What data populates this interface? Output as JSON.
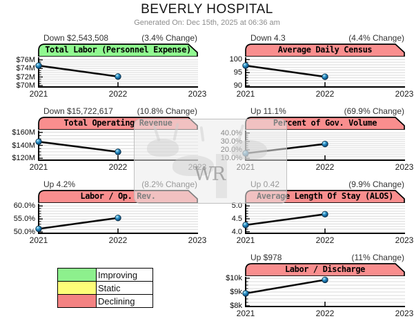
{
  "header": {
    "title": "BEVERLY HOSPITAL",
    "subtitle": "Generated On: Dec 15th, 2025 at 06:36 am"
  },
  "watermark": {
    "text": "WR"
  },
  "legend": {
    "items": [
      {
        "label": "Improving",
        "color": "#8df08d"
      },
      {
        "label": "Static",
        "color": "#fdfd78"
      },
      {
        "label": "Declining",
        "color": "#f38282"
      }
    ]
  },
  "colors": {
    "band_improving": "#90f890",
    "band_declining": "#f98e8e",
    "grid": "#d9d9d9",
    "axis": "#000000",
    "line": "#0a0a0a",
    "marker_dark": "#0b4c7e",
    "marker_mid": "#2b93c9",
    "marker_light": "#bfeefc"
  },
  "chart_data": [
    {
      "type": "line",
      "title": "Total Labor (Personnel Expense)",
      "status": "improving",
      "annotation_left": "Down $2,543,508",
      "annotation_right": "(3.4% Change)",
      "x": [
        2021,
        2022
      ],
      "values": [
        74.65,
        72.1
      ],
      "x_domain": [
        2021,
        2023
      ],
      "x_ticks": [
        "2021",
        "2022",
        "2023"
      ],
      "y_ticks": [
        {
          "label": "$76M",
          "value": 76
        },
        {
          "label": "$74M",
          "value": 74
        },
        {
          "label": "$72M",
          "value": 72
        },
        {
          "label": "$70M",
          "value": 70
        }
      ],
      "value_range": [
        69.5,
        76.6
      ],
      "minor_step": 0.5,
      "grid": true,
      "legend_position": "none"
    },
    {
      "type": "line",
      "title": "Average Daily Census",
      "status": "declining",
      "annotation_left": "Down 4.3",
      "annotation_right": "(4.4% Change)",
      "x": [
        2021,
        2022
      ],
      "values": [
        97.7,
        93.4
      ],
      "x_domain": [
        2021,
        2023
      ],
      "x_ticks": [
        "2021",
        "2022",
        "2023"
      ],
      "y_ticks": [
        {
          "label": "100",
          "value": 100
        },
        {
          "label": "95",
          "value": 95
        },
        {
          "label": "90",
          "value": 90
        }
      ],
      "value_range": [
        89.2,
        100.9
      ],
      "minor_step": 1,
      "grid": true,
      "legend_position": "none"
    },
    {
      "type": "line",
      "title": "Total Operating Revenue",
      "status": "declining",
      "annotation_left": "Down $15,722,617",
      "annotation_right": "(10.8% Change)",
      "x": [
        2021,
        2022
      ],
      "values": [
        145.6,
        129.9
      ],
      "x_domain": [
        2021,
        2023
      ],
      "x_ticks": [
        "2021",
        "2022",
        "2023"
      ],
      "y_ticks": [
        {
          "label": "$160M",
          "value": 160
        },
        {
          "label": "$140M",
          "value": 140
        },
        {
          "label": "$120M",
          "value": 120
        }
      ],
      "value_range": [
        116,
        163
      ],
      "minor_step": 5,
      "grid": true,
      "legend_position": "none"
    },
    {
      "type": "line",
      "title": "Percent of Gov. Volume",
      "status": "declining",
      "annotation_left": "Up 11.1%",
      "annotation_right": "(69.9% Change)",
      "x": [
        2021,
        2022
      ],
      "values": [
        15.9,
        27.0
      ],
      "x_domain": [
        2021,
        2023
      ],
      "x_ticks": [
        "2021",
        "2022",
        "2023"
      ],
      "y_ticks": [
        {
          "label": "40.0%",
          "value": 40
        },
        {
          "label": "30.0%",
          "value": 30
        },
        {
          "label": "20.0%",
          "value": 20
        },
        {
          "label": "10.0%",
          "value": 10
        }
      ],
      "value_range": [
        7,
        43
      ],
      "minor_step": 2.5,
      "grid": true,
      "legend_position": "none"
    },
    {
      "type": "line",
      "title": "Labor / Op. Rev.",
      "status": "declining",
      "annotation_left": "Up 4.2%",
      "annotation_right": "(8.2% Change)",
      "x": [
        2021,
        2022
      ],
      "values": [
        51.2,
        55.4
      ],
      "x_domain": [
        2021,
        2023
      ],
      "x_ticks": [
        "2021",
        "2022",
        "2023"
      ],
      "y_ticks": [
        {
          "label": "60.0%",
          "value": 60
        },
        {
          "label": "55.0%",
          "value": 55
        },
        {
          "label": "50.0%",
          "value": 50
        }
      ],
      "value_range": [
        49.2,
        60.9
      ],
      "minor_step": 1,
      "grid": true,
      "legend_position": "none"
    },
    {
      "type": "line",
      "title": "Average Length Of Stay (ALOS)",
      "status": "declining",
      "annotation_left": "Up 0.42",
      "annotation_right": "(9.9% Change)",
      "x": [
        2021,
        2022
      ],
      "values": [
        4.26,
        4.68
      ],
      "x_domain": [
        2021,
        2023
      ],
      "x_ticks": [
        "2021",
        "2022",
        "2023"
      ],
      "y_ticks": [
        {
          "label": "5.0",
          "value": 5.0
        },
        {
          "label": "4.5",
          "value": 4.5
        },
        {
          "label": "4.0",
          "value": 4.0
        }
      ],
      "value_range": [
        3.91,
        5.09
      ],
      "minor_step": 0.1,
      "grid": true,
      "legend_position": "none"
    },
    {
      "type": "line",
      "title": "Labor / Discharge",
      "status": "declining",
      "annotation_left": "Up $978",
      "annotation_right": "(11% Change)",
      "x": [
        2021,
        2022
      ],
      "values": [
        8.9,
        9.88
      ],
      "x_domain": [
        2021,
        2023
      ],
      "x_ticks": [
        "2021",
        "2022",
        "2023"
      ],
      "y_ticks": [
        {
          "label": "$10k",
          "value": 10
        },
        {
          "label": "$9k",
          "value": 9
        },
        {
          "label": "$8k",
          "value": 8
        }
      ],
      "value_range": [
        7.9,
        10.1
      ],
      "minor_step": 0.25,
      "grid": true,
      "legend_position": "none"
    }
  ]
}
